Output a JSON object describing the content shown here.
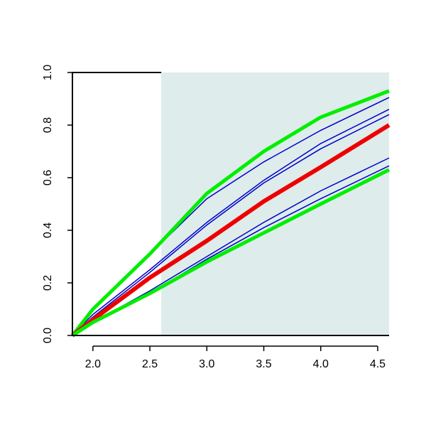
{
  "chart_data": {
    "type": "line",
    "x": [
      1.82,
      2.0,
      2.5,
      3.0,
      3.5,
      4.0,
      4.6
    ],
    "series": [
      {
        "color": "#0000cc",
        "linewidth": 1.5,
        "values": [
          0,
          0.1,
          0.31,
          0.52,
          0.66,
          0.78,
          0.905
        ]
      },
      {
        "color": "#0000cc",
        "linewidth": 1.5,
        "values": [
          0,
          0.08,
          0.25,
          0.43,
          0.59,
          0.73,
          0.86
        ]
      },
      {
        "color": "#0000cc",
        "linewidth": 1.5,
        "values": [
          0,
          0.07,
          0.24,
          0.42,
          0.58,
          0.71,
          0.84
        ]
      },
      {
        "color": "#0000cc",
        "linewidth": 1.5,
        "values": [
          0,
          0.05,
          0.17,
          0.3,
          0.43,
          0.55,
          0.675
        ]
      },
      {
        "color": "#0000cc",
        "linewidth": 1.5,
        "values": [
          0,
          0.05,
          0.16,
          0.29,
          0.41,
          0.52,
          0.645
        ]
      },
      {
        "color": "#00ee00",
        "linewidth": 5,
        "values": [
          0,
          0.1,
          0.31,
          0.54,
          0.7,
          0.83,
          0.93
        ]
      },
      {
        "color": "#ee0000",
        "linewidth": 6,
        "values": [
          0,
          0.06,
          0.22,
          0.36,
          0.51,
          0.64,
          0.8
        ]
      },
      {
        "color": "#00ee00",
        "linewidth": 5,
        "values": [
          0,
          0.05,
          0.16,
          0.28,
          0.39,
          0.5,
          0.63
        ]
      }
    ],
    "shaded_xrange": [
      2.6,
      4.6
    ],
    "shade_color": "#deeceb",
    "xlim": [
      1.82,
      4.6
    ],
    "ylim": [
      0,
      1
    ],
    "xticks": [
      {
        "value": 2,
        "label": "2.0"
      },
      2.5,
      {
        "value": 3,
        "label": "3.0"
      },
      3.5,
      {
        "value": 4,
        "label": "4.0"
      },
      4.5
    ],
    "yticks": [
      {
        "value": 0,
        "label": "0.0"
      },
      0.2,
      0.4,
      0.6,
      0.8,
      {
        "value": 1,
        "label": "1.0"
      }
    ]
  }
}
